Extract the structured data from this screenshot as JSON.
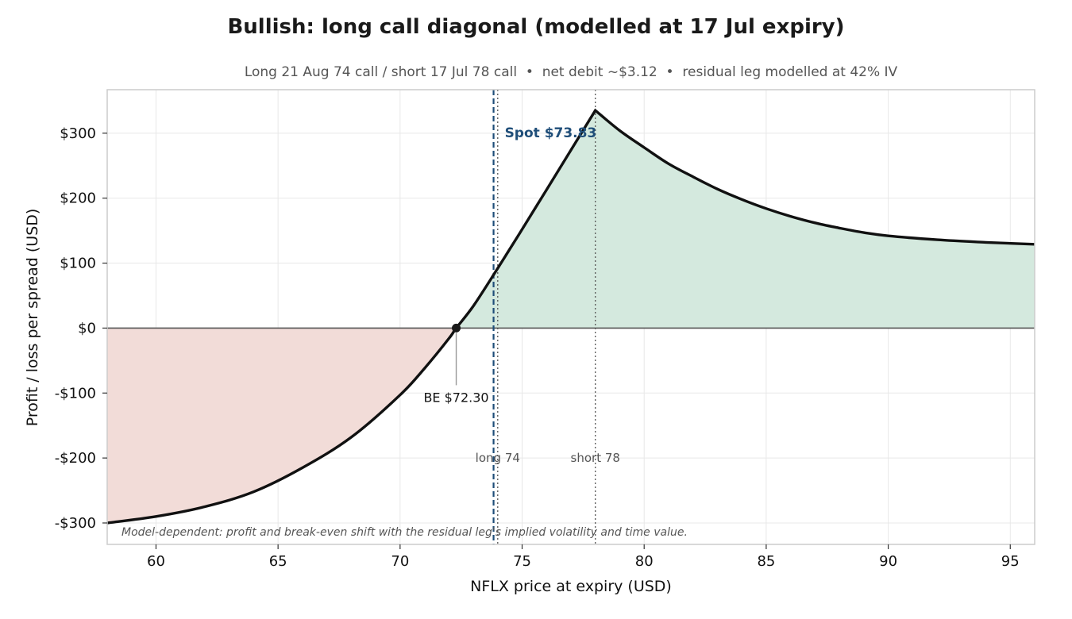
{
  "chart_data": {
    "type": "line",
    "title": "Bullish: long call diagonal (modelled at 17 Jul expiry)",
    "subtitle": "Long 21 Aug 74 call / short 17 Jul 78 call  •  net debit ~$3.12  •  residual leg modelled at 42% IV",
    "xlabel": "NFLX price at expiry (USD)",
    "ylabel": "Profit / loss per spread (USD)",
    "xlim": [
      58,
      96
    ],
    "ylim": [
      -333,
      367
    ],
    "x_ticks": [
      60,
      65,
      70,
      75,
      80,
      85,
      90,
      95
    ],
    "x_tick_labels": [
      "60",
      "65",
      "70",
      "75",
      "80",
      "85",
      "90",
      "95"
    ],
    "y_ticks": [
      -300,
      -200,
      -100,
      0,
      100,
      200,
      300
    ],
    "y_tick_labels": [
      "-$300",
      "-$200",
      "-$100",
      "$0",
      "$100",
      "$200",
      "$300"
    ],
    "grid": true,
    "series": [
      {
        "x": [
          58,
          60,
          62,
          64,
          66,
          68,
          70,
          71,
          72,
          72.3,
          73,
          74,
          75,
          76,
          77,
          78,
          79,
          80,
          81,
          82,
          83,
          84,
          85,
          86,
          87,
          88,
          89,
          90,
          92,
          94,
          96
        ],
        "y": [
          -300,
          -290,
          -275,
          -252,
          -215,
          -168,
          -103,
          -62,
          -16,
          0,
          34,
          92,
          152,
          213,
          274,
          335,
          304,
          278,
          253,
          233,
          214,
          198,
          184,
          172,
          162,
          154,
          147,
          142,
          136,
          132,
          129
        ]
      }
    ],
    "break_even": {
      "x": 72.3,
      "y": 0,
      "label": "BE $72.30"
    },
    "spot": {
      "x": 73.83,
      "label": "Spot $73.83"
    },
    "strikes": [
      {
        "x": 74,
        "label": "long 74"
      },
      {
        "x": 78,
        "label": "short 78"
      }
    ],
    "footnote": "Model-dependent: profit and break-even shift with the residual leg's implied volatility and time value.",
    "colors": {
      "profit_fill": "#d4e9de",
      "loss_fill": "#f2dcd8",
      "line": "#111111",
      "spot": "#1f4e79",
      "zero": "#555555",
      "grid": "#e8e8e8",
      "frame": "#cccccc"
    }
  }
}
